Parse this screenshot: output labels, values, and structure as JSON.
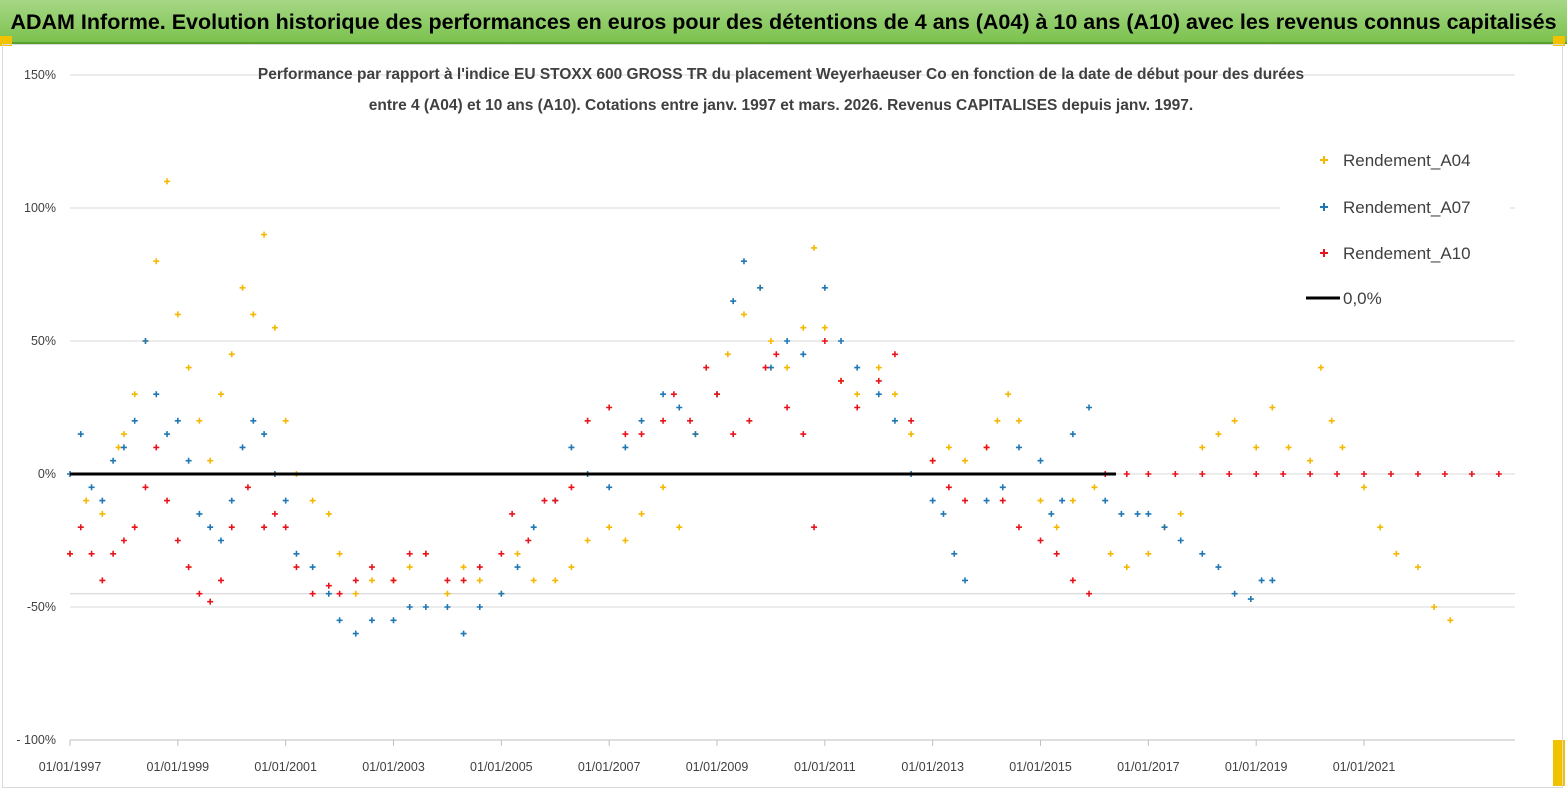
{
  "header": {
    "title": "ADAM Informe. Evolution historique des performances en euros pour des détentions de 4 ans (A04) à 10 ans (A10) avec les revenus connus capitalisés"
  },
  "chart_data": {
    "type": "scatter",
    "title_line1": "Performance par rapport à l'indice EU STOXX 600 GROSS TR  du placement Weyerhaeuser Co en fonction de la date de début pour des durées",
    "title_line2": "entre 4 (A04) et 10 ans (A10). Cotations entre janv. 1997 et mars. 2026. Revenus CAPITALISES depuis janv. 1997.",
    "xlabel": "",
    "ylabel": "",
    "xlim": [
      1997.0,
      2023.8
    ],
    "ylim": [
      -100,
      150
    ],
    "y_ticks": [
      {
        "value": 150,
        "label": "150%"
      },
      {
        "value": 100,
        "label": "100%"
      },
      {
        "value": 50,
        "label": "50%"
      },
      {
        "value": 0,
        "label": "0%"
      },
      {
        "value": -50,
        "label": "-50%"
      },
      {
        "value": -100,
        "label": "- 100%"
      }
    ],
    "x_ticks": [
      {
        "value": 1997.0,
        "label": "01/01/1997"
      },
      {
        "value": 1999.0,
        "label": "01/01/1999"
      },
      {
        "value": 2001.0,
        "label": "01/01/2001"
      },
      {
        "value": 2003.0,
        "label": "01/01/2003"
      },
      {
        "value": 2005.0,
        "label": "01/01/2005"
      },
      {
        "value": 2007.0,
        "label": "01/01/2007"
      },
      {
        "value": 2009.0,
        "label": "01/01/2009"
      },
      {
        "value": 2011.0,
        "label": "01/01/2011"
      },
      {
        "value": 2013.0,
        "label": "01/01/2013"
      },
      {
        "value": 2015.0,
        "label": "01/01/2015"
      },
      {
        "value": 2017.0,
        "label": "01/01/2017"
      },
      {
        "value": 2019.0,
        "label": "01/01/2019"
      },
      {
        "value": 2021.0,
        "label": "01/01/2021"
      }
    ],
    "grid": true,
    "extra_gridline_y": -45,
    "legend_position": "top-right",
    "marker": "+",
    "series": [
      {
        "name": "Rendement_A04",
        "color": "#f5b800",
        "x": [
          1997.0,
          1997.3,
          1997.6,
          1997.9,
          1998.0,
          1998.2,
          1998.4,
          1998.6,
          1998.8,
          1999.0,
          1999.2,
          1999.4,
          1999.6,
          1999.8,
          2000.0,
          2000.2,
          2000.4,
          2000.6,
          2000.8,
          2001.0,
          2001.2,
          2001.5,
          2001.8,
          2002.0,
          2002.3,
          2002.6,
          2003.0,
          2003.3,
          2003.6,
          2004.0,
          2004.3,
          2004.6,
          2005.0,
          2005.3,
          2005.6,
          2006.0,
          2006.3,
          2006.6,
          2007.0,
          2007.3,
          2007.6,
          2008.0,
          2008.3,
          2008.6,
          2009.0,
          2009.2,
          2009.5,
          2009.8,
          2010.0,
          2010.3,
          2010.6,
          2010.8,
          2011.0,
          2011.3,
          2011.6,
          2012.0,
          2012.3,
          2012.6,
          2013.0,
          2013.3,
          2013.6,
          2014.0,
          2014.2,
          2014.4,
          2014.6,
          2015.0,
          2015.3,
          2015.6,
          2016.0,
          2016.3,
          2016.6,
          2017.0,
          2017.3,
          2017.6,
          2018.0,
          2018.3,
          2018.6,
          2019.0,
          2019.3,
          2019.6,
          2020.0,
          2020.2,
          2020.4,
          2020.6,
          2021.0,
          2021.3,
          2021.6,
          2022.0,
          2022.3,
          2022.6
        ],
        "y": [
          -30,
          -10,
          -15,
          10,
          15,
          30,
          50,
          80,
          110,
          60,
          40,
          20,
          5,
          30,
          45,
          70,
          60,
          90,
          55,
          20,
          0,
          -10,
          -15,
          -30,
          -45,
          -40,
          -40,
          -35,
          -30,
          -45,
          -35,
          -40,
          -45,
          -30,
          -40,
          -40,
          -35,
          -25,
          -20,
          -25,
          -15,
          -5,
          -20,
          15,
          30,
          45,
          60,
          70,
          50,
          40,
          55,
          85,
          55,
          35,
          30,
          40,
          30,
          15,
          5,
          10,
          5,
          10,
          20,
          30,
          20,
          -10,
          -20,
          -10,
          -5,
          -30,
          -35,
          -30,
          -20,
          -15,
          10,
          15,
          20,
          10,
          25,
          10,
          5,
          40,
          20,
          10,
          -5,
          -20,
          -30,
          -35,
          -50,
          -55
        ]
      },
      {
        "name": "Rendement_A07",
        "color": "#1f77b4",
        "x": [
          1997.0,
          1997.2,
          1997.4,
          1997.6,
          1997.8,
          1998.0,
          1998.2,
          1998.4,
          1998.6,
          1998.8,
          1999.0,
          1999.2,
          1999.4,
          1999.6,
          1999.8,
          2000.0,
          2000.2,
          2000.4,
          2000.6,
          2000.8,
          2001.0,
          2001.2,
          2001.5,
          2001.8,
          2002.0,
          2002.3,
          2002.6,
          2003.0,
          2003.3,
          2003.6,
          2004.0,
          2004.3,
          2004.6,
          2005.0,
          2005.3,
          2005.6,
          2006.0,
          2006.3,
          2006.6,
          2007.0,
          2007.3,
          2007.6,
          2008.0,
          2008.3,
          2008.6,
          2009.0,
          2009.3,
          2009.5,
          2009.8,
          2010.0,
          2010.3,
          2010.6,
          2011.0,
          2011.3,
          2011.6,
          2012.0,
          2012.3,
          2012.6,
          2013.0,
          2013.2,
          2013.4,
          2013.6,
          2014.0,
          2014.3,
          2014.6,
          2015.0,
          2015.2,
          2015.4,
          2015.6,
          2015.9,
          2016.2,
          2016.5,
          2016.8,
          2017.0,
          2017.3,
          2017.6,
          2018.0,
          2018.3,
          2018.6,
          2018.9,
          2019.1,
          2019.3
        ],
        "y": [
          0,
          15,
          -5,
          -10,
          5,
          10,
          20,
          50,
          30,
          15,
          20,
          5,
          -15,
          -20,
          -25,
          -10,
          10,
          20,
          15,
          0,
          -10,
          -30,
          -35,
          -45,
          -55,
          -60,
          -55,
          -55,
          -50,
          -50,
          -50,
          -60,
          -50,
          -45,
          -35,
          -20,
          -10,
          10,
          0,
          -5,
          10,
          20,
          30,
          25,
          15,
          30,
          65,
          80,
          70,
          40,
          50,
          45,
          70,
          50,
          40,
          30,
          20,
          0,
          -10,
          -15,
          -30,
          -40,
          -10,
          -5,
          10,
          5,
          -15,
          -10,
          15,
          25,
          -10,
          -15,
          -15,
          -15,
          -20,
          -25,
          -30,
          -35,
          -45,
          -47,
          -40,
          -40
        ]
      },
      {
        "name": "Rendement_A10",
        "color": "#e8141b",
        "x": [
          1997.0,
          1997.2,
          1997.4,
          1997.6,
          1997.8,
          1998.0,
          1998.2,
          1998.4,
          1998.6,
          1998.8,
          1999.0,
          1999.2,
          1999.4,
          1999.6,
          1999.8,
          2000.0,
          2000.3,
          2000.6,
          2000.8,
          2001.0,
          2001.2,
          2001.5,
          2001.8,
          2002.0,
          2002.3,
          2002.6,
          2003.0,
          2003.3,
          2003.6,
          2004.0,
          2004.3,
          2004.6,
          2005.0,
          2005.2,
          2005.5,
          2005.8,
          2006.0,
          2006.3,
          2006.6,
          2007.0,
          2007.3,
          2007.6,
          2008.0,
          2008.2,
          2008.5,
          2008.8,
          2009.0,
          2009.3,
          2009.6,
          2009.9,
          2010.1,
          2010.3,
          2010.6,
          2010.8,
          2011.0,
          2011.3,
          2011.6,
          2012.0,
          2012.3,
          2012.6,
          2013.0,
          2013.3,
          2013.6,
          2014.0,
          2014.3,
          2014.6,
          2015.0,
          2015.3,
          2015.6,
          2015.9,
          2016.2,
          2016.6,
          2017.0,
          2017.5,
          2018.0,
          2018.5,
          2019.0,
          2019.5,
          2020.0,
          2020.5,
          2021.0,
          2021.5,
          2022.0,
          2022.5,
          2023.0,
          2023.5
        ],
        "y": [
          -30,
          -20,
          -30,
          -40,
          -30,
          -25,
          -20,
          -5,
          10,
          -10,
          -25,
          -35,
          -45,
          -48,
          -40,
          -20,
          -5,
          -20,
          -15,
          -20,
          -35,
          -45,
          -42,
          -45,
          -40,
          -35,
          -40,
          -30,
          -30,
          -40,
          -40,
          -35,
          -30,
          -15,
          -25,
          -10,
          -10,
          -5,
          20,
          25,
          15,
          15,
          20,
          30,
          20,
          40,
          30,
          15,
          20,
          40,
          45,
          25,
          15,
          -20,
          50,
          35,
          25,
          35,
          45,
          20,
          5,
          -5,
          -10,
          10,
          -10,
          -20,
          -25,
          -30,
          -40,
          -45,
          0,
          0,
          0,
          0,
          0,
          0,
          0,
          0,
          0,
          0,
          0,
          0,
          0,
          0,
          0,
          0
        ]
      }
    ],
    "reference_line": {
      "name": "0,0%",
      "y": 0,
      "color": "#000000"
    }
  }
}
